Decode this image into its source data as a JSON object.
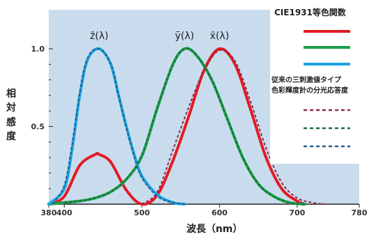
{
  "chart_data": {
    "type": "line",
    "xlabel": "波長（nm）",
    "ylabel": "相対感度",
    "xlim": [
      380,
      780
    ],
    "ylim": [
      0,
      1.0
    ],
    "x_ticks": [
      380,
      400,
      500,
      600,
      700,
      780
    ],
    "y_ticks": [
      0.5,
      1.0
    ],
    "y_tick_labels": [
      "0.5",
      "1.0"
    ],
    "curve_labels": [
      {
        "text": "z̄(λ)",
        "x": 445,
        "y": 1.0
      },
      {
        "text": "ȳ(λ)",
        "x": 555,
        "y": 1.0
      },
      {
        "text": "x̄(λ)",
        "x": 600,
        "y": 1.0
      }
    ],
    "legend": {
      "title": "CIE1931等色関数",
      "subtitle_lines": [
        "従来の三刺激値タイプ",
        "色彩輝度計の分光応答度"
      ],
      "solid_colors": [
        "#e31b23",
        "#1aa04a",
        "#1aa3e0"
      ],
      "dashed_colors": [
        "#8c2a4a",
        "#1f6b3a",
        "#245a8a"
      ]
    },
    "series": [
      {
        "color": "#e31b23",
        "style": "solid",
        "x": [
          380,
          400,
          420,
          440,
          445,
          460,
          480,
          500,
          520,
          540,
          560,
          580,
          600,
          620,
          640,
          660,
          680,
          700,
          710
        ],
        "values": [
          0.0,
          0.05,
          0.25,
          0.32,
          0.32,
          0.27,
          0.09,
          0.0,
          0.06,
          0.28,
          0.56,
          0.86,
          1.0,
          0.9,
          0.61,
          0.3,
          0.1,
          0.02,
          0.0
        ]
      },
      {
        "color": "#1aa04a",
        "style": "solid",
        "x": [
          380,
          400,
          420,
          440,
          460,
          480,
          500,
          520,
          540,
          555,
          570,
          590,
          610,
          630,
          650,
          670,
          690,
          710
        ],
        "values": [
          0.0,
          0.01,
          0.02,
          0.04,
          0.08,
          0.16,
          0.31,
          0.62,
          0.9,
          1.0,
          0.96,
          0.8,
          0.55,
          0.3,
          0.13,
          0.05,
          0.01,
          0.0
        ]
      },
      {
        "color": "#1aa3e0",
        "style": "solid",
        "x": [
          380,
          400,
          410,
          420,
          430,
          445,
          460,
          470,
          480,
          490,
          500,
          520,
          540,
          555
        ],
        "values": [
          0.0,
          0.1,
          0.35,
          0.7,
          0.93,
          1.0,
          0.9,
          0.7,
          0.5,
          0.32,
          0.18,
          0.06,
          0.01,
          0.0
        ]
      },
      {
        "color": "#8c2a4a",
        "style": "dashed",
        "x": [
          500,
          520,
          540,
          560,
          580,
          600,
          620,
          640,
          660,
          680,
          700,
          720,
          735
        ],
        "values": [
          0.0,
          0.08,
          0.35,
          0.62,
          0.86,
          0.99,
          0.92,
          0.66,
          0.36,
          0.14,
          0.04,
          0.01,
          0.0
        ]
      },
      {
        "color": "#1f6b3a",
        "style": "dashed",
        "x": [
          400,
          420,
          440,
          460,
          480,
          500,
          520,
          540,
          555,
          570,
          590,
          610,
          630,
          650,
          670,
          690,
          710
        ],
        "values": [
          0.01,
          0.02,
          0.04,
          0.08,
          0.16,
          0.32,
          0.63,
          0.9,
          1.0,
          0.96,
          0.8,
          0.55,
          0.3,
          0.13,
          0.05,
          0.01,
          0.0
        ]
      },
      {
        "color": "#245a8a",
        "style": "dashed",
        "x": [
          385,
          400,
          410,
          420,
          430,
          445,
          460,
          470,
          480,
          490,
          500,
          520,
          540,
          555
        ],
        "values": [
          0.0,
          0.12,
          0.38,
          0.72,
          0.94,
          1.0,
          0.9,
          0.7,
          0.49,
          0.31,
          0.17,
          0.05,
          0.01,
          0.0
        ]
      }
    ]
  }
}
